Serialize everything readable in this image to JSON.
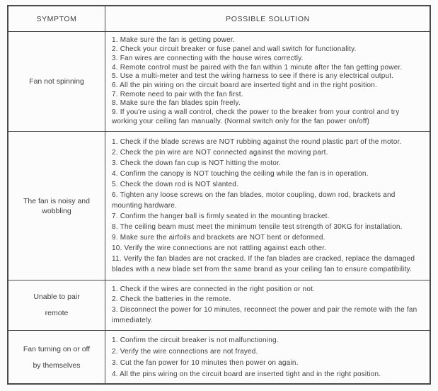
{
  "colors": {
    "page_background": "#fbfbfb",
    "table_background": "#fcfcfc",
    "border": "#4a4a4a",
    "text": "#3e3e3e"
  },
  "table": {
    "columns": {
      "symptom": "SYMPTOM",
      "solution": "POSSIBLE SOLUTION"
    },
    "rows": [
      {
        "symptom": "Fan not spinning",
        "symptom_lines": [
          "Fan not spinning"
        ],
        "solutions": [
          "1. Make sure the fan is getting power.",
          "2. Check your circuit breaker or fuse panel and wall switch for functionality.",
          "3. Fan wires are connecting with the house wires correctly.",
          "4. Remote control must be paired with the fan within 1 minute after the fan getting power.",
          "5. Use a multi-meter and test the wiring harness to see if there is any electrical output.",
          "6. All the pin wiring on the circuit board are inserted tight and in the right position.",
          "7. Remote need to pair with the fan first.",
          "8. Make sure the fan blades spin freely.",
          "9. If you're using a wall control, check the power to the breaker from your control and try working your ceiling fan manually. (Normal switch only for the fan power on/off)"
        ]
      },
      {
        "symptom": "The fan is noisy and wobbling",
        "symptom_lines": [
          "The fan is noisy and",
          "wobbling"
        ],
        "solutions": [
          "1. Check if the blade screws are NOT rubbing against the round plastic part of the motor.",
          "2. Check the pin wire are NOT connected against the moving part.",
          "3. Check the down fan cup is NOT hitting the motor.",
          "4. Confirm the canopy is NOT touching the ceiling while the fan is in operation.",
          "5. Check the down rod is NOT slanted.",
          "6. Tighten any loose screws on the fan blades, motor coupling, down rod, brackets and mounting hardware.",
          "7. Confirm the hanger ball is firmly seated in the mounting bracket.",
          "8. The ceiling beam must meet the minimum tensile test strength of 30KG for installation.",
          "9. Make sure the airfoils and brackets are NOT bent or deformed.",
          "10. Verify the wire connections are not rattling against each other.",
          "11. Verify the fan blades are not cracked. If the fan blades are cracked, replace the damaged blades with a new blade set from the same brand as your ceiling fan to ensure compatibility."
        ]
      },
      {
        "symptom": "Unable to pair remote",
        "symptom_lines": [
          "Unable to pair",
          "remote"
        ],
        "solutions": [
          "1. Check if the wires are connected in the right position or not.",
          "2. Check the batteries in the remote.",
          "3. Disconnect the power for 10 minutes, reconnect the power and pair the remote with the fan immediately."
        ]
      },
      {
        "symptom": "Fan turning on or off by themselves",
        "symptom_lines": [
          "Fan turning on or off",
          "by themselves"
        ],
        "solutions": [
          "1. Confirm the circuit breaker is not malfunctioning.",
          "2. Verify the wire connections are not frayed.",
          "3. Cut the fan power for 10 minutes then power on again.",
          "4. All the pins wiring on the circuit board are inserted tight and in the right position."
        ]
      }
    ]
  }
}
